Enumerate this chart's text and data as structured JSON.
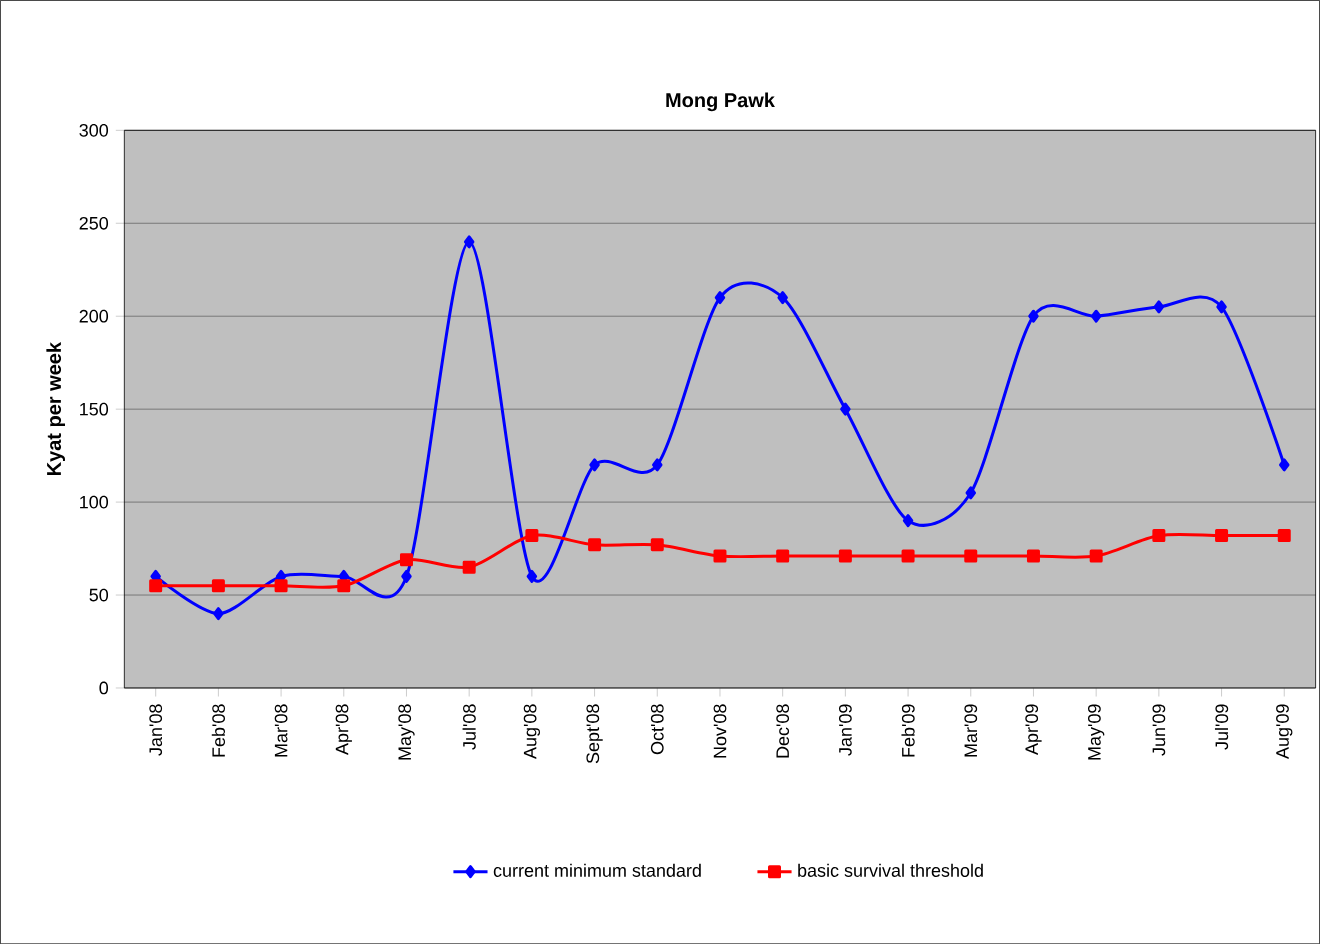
{
  "chart_data": {
    "type": "line",
    "title": "Mong Pawk",
    "ylabel": "Kyat per week",
    "categories": [
      "Jan'08",
      "Feb'08",
      "Mar'08",
      "Apr'08",
      "May'08",
      "Jul'08",
      "Aug'08",
      "Sept'08",
      "Oct'08",
      "Nov'08",
      "Dec'08",
      "Jan'09",
      "Feb'09",
      "Mar'09",
      "Apr'09",
      "May'09",
      "Jun'09",
      "Jul'09",
      "Aug'09"
    ],
    "series": [
      {
        "name": "current minimum standard",
        "color": "#0000ff",
        "marker": "diamond",
        "values": [
          60,
          40,
          60,
          60,
          60,
          240,
          60,
          120,
          120,
          210,
          210,
          150,
          90,
          105,
          200,
          200,
          205,
          205,
          120
        ]
      },
      {
        "name": "basic survival threshold",
        "color": "#ff0000",
        "marker": "square",
        "values": [
          55,
          55,
          55,
          55,
          69,
          65,
          82,
          77,
          77,
          71,
          71,
          71,
          71,
          71,
          71,
          71,
          82,
          82,
          82
        ]
      }
    ],
    "ylim": [
      0,
      300
    ],
    "yticks": [
      0,
      50,
      100,
      150,
      200,
      250,
      300
    ],
    "grid": "y",
    "legend": "bottom"
  }
}
